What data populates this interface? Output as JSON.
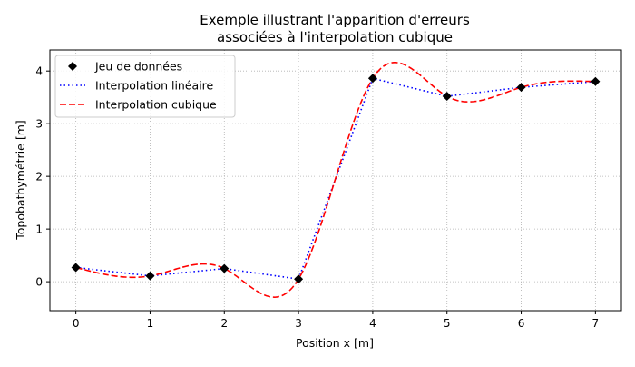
{
  "chart_data": {
    "type": "line",
    "title": [
      "Exemple illustrant l'apparition d'erreurs",
      "associées à l'interpolation cubique"
    ],
    "xlabel": "Position x [m]",
    "ylabel": "Topobathymétrie [m]",
    "xlim": [
      -0.35,
      7.35
    ],
    "ylim": [
      -0.55,
      4.4
    ],
    "xticks": [
      0,
      1,
      2,
      3,
      4,
      5,
      6,
      7
    ],
    "yticks": [
      0,
      1,
      2,
      3,
      4
    ],
    "grid": true,
    "legend_position": "top-left",
    "series": [
      {
        "name": "Jeu de données",
        "kind": "markers",
        "marker": "diamond",
        "color": "#000000",
        "x": [
          0,
          1,
          2,
          3,
          4,
          5,
          6,
          7
        ],
        "y": [
          0.27,
          0.11,
          0.25,
          0.05,
          3.86,
          3.52,
          3.69,
          3.8
        ]
      },
      {
        "name": "Interpolation linéaire",
        "kind": "line",
        "style": "dotted",
        "color": "#0000ff",
        "x": [
          0,
          1,
          2,
          3,
          4,
          5,
          6,
          7
        ],
        "y": [
          0.27,
          0.11,
          0.25,
          0.05,
          3.86,
          3.52,
          3.69,
          3.8
        ]
      },
      {
        "name": "Interpolation cubique",
        "kind": "line",
        "style": "dashed",
        "color": "#ff0000",
        "method": "natural-cubic-spline",
        "x": [
          0,
          1,
          2,
          3,
          4,
          5,
          6,
          7
        ],
        "y": [
          0.27,
          0.11,
          0.25,
          0.05,
          3.86,
          3.52,
          3.69,
          3.8
        ]
      }
    ]
  }
}
